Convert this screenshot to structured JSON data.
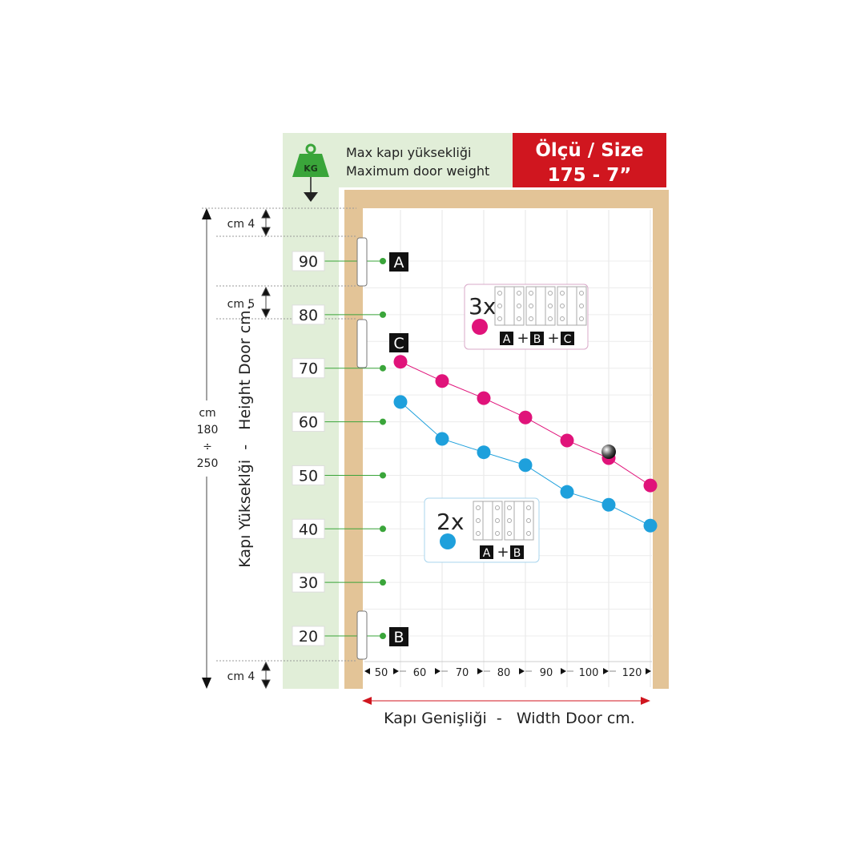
{
  "header": {
    "line1": "Max kapı yüksekliği",
    "line2": "Maximum door weight",
    "kg_label": "KG",
    "size_line1": "Ölçü / Size",
    "size_line2": "175 - 7”"
  },
  "dimensions": {
    "total": [
      "cm",
      "180",
      "÷",
      "250"
    ],
    "top_gap": "cm 4",
    "mid_gap": "cm 5",
    "bottom_gap": "cm 4"
  },
  "hinges": {
    "a": "A",
    "b": "B",
    "c": "C"
  },
  "legend": [
    {
      "count": "3x",
      "formula": [
        "A",
        "+",
        "B",
        "+",
        "C"
      ],
      "color": "#e0137a"
    },
    {
      "count": "2x",
      "formula": [
        "A",
        "+",
        "B"
      ],
      "color": "#1ea0dc"
    }
  ],
  "colors": {
    "accent_red": "#d0161f",
    "green_band": "#e1eed8",
    "wood": "#e3c497",
    "dot_green": "#3aa53a"
  },
  "chart_data": {
    "type": "line",
    "xlabel": "Kapı Genişliği  -   Width Door cm.",
    "ylabel": "Kapı Yükseklği  -   Height Door cm.",
    "categories": [
      "50",
      "60",
      "70",
      "80",
      "90",
      "100",
      "120"
    ],
    "yticks": [
      90,
      80,
      70,
      60,
      50,
      40,
      30,
      20
    ],
    "ylim": [
      20,
      90
    ],
    "grid": true,
    "series": [
      {
        "legend": "3x A + B + C",
        "color": "#e0137a",
        "values": [
          71.2,
          67.6,
          64.4,
          60.8,
          56.5,
          53.2,
          48.1
        ]
      },
      {
        "legend": "2x A + B",
        "color": "#1ea0dc",
        "values": [
          63.7,
          56.8,
          54.3,
          51.9,
          46.9,
          44.5,
          40.6
        ]
      }
    ],
    "highlight": {
      "category": "100",
      "series": "3x A + B + C"
    }
  }
}
